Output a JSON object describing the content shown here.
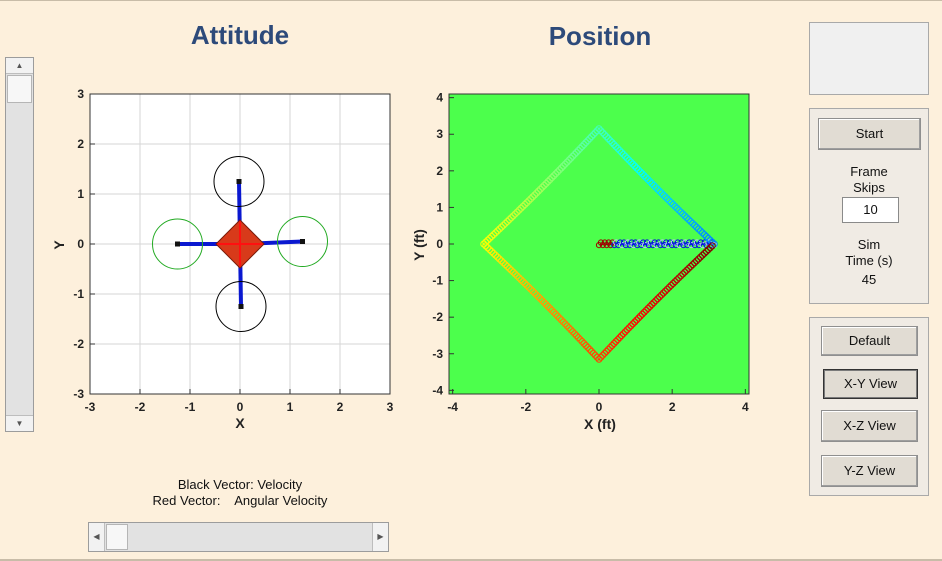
{
  "titles": {
    "attitude": "Attitude",
    "position": "Position"
  },
  "legend": {
    "line1": "Black Vector: Velocity",
    "line2": "Red Vector:    Angular Velocity"
  },
  "controls": {
    "start_label": "Start",
    "frame_skips_label_1": "Frame",
    "frame_skips_label_2": "Skips",
    "frame_skips_value": "10",
    "sim_time_label_1": "Sim",
    "sim_time_label_2": "Time (s)",
    "sim_time_value": "45"
  },
  "views": {
    "default_label": "Default",
    "xy_label": "X-Y View",
    "xz_label": "X-Z View",
    "yz_label": "Y-Z View",
    "active": "xy"
  },
  "colors": {
    "title": "#2d4a7a",
    "plot_bg_position": "#4cff4c",
    "rotor_front_back": "#000000",
    "rotor_sides": "#22aa22",
    "body": "#d83a1a",
    "arms": "#0a18d0"
  },
  "chart_data": [
    {
      "type": "scatter",
      "name": "attitude",
      "xlabel": "X",
      "ylabel": "Y",
      "xlim": [
        -3,
        3
      ],
      "ylim": [
        -3,
        3
      ],
      "xticks": [
        "-3",
        "-2",
        "-1",
        "0",
        "1",
        "2",
        "3"
      ],
      "yticks": [
        "-3",
        "-2",
        "-1",
        "0",
        "1",
        "2",
        "3"
      ],
      "grid": true,
      "rotors": [
        {
          "x": -0.02,
          "y": 1.25,
          "r": 0.5,
          "color": "black"
        },
        {
          "x": 0.02,
          "y": -1.25,
          "r": 0.5,
          "color": "black"
        },
        {
          "x": -1.25,
          "y": 0.0,
          "r": 0.5,
          "color": "green"
        },
        {
          "x": 1.25,
          "y": 0.05,
          "r": 0.5,
          "color": "green"
        }
      ],
      "body_half_width": 0.48
    },
    {
      "type": "scatter",
      "name": "position",
      "xlabel": "X (ft)",
      "ylabel": "Y (ft)",
      "xlim": [
        -4.1,
        4.1
      ],
      "ylim": [
        -4.1,
        4.1
      ],
      "xticks": [
        "-4",
        "-2",
        "0",
        "2",
        "4"
      ],
      "yticks": [
        "-4",
        "-3",
        "-2",
        "-1",
        "0",
        "1",
        "2",
        "3",
        "4"
      ],
      "grid": false,
      "trajectory": "diamond path through (3.15,0), (0,3.15), (-3.15,0), (0,-3.15), colored along time blue→cyan→yellow→red; initial segment from (0,0) to (3.15,0)",
      "vertices": [
        [
          3.15,
          0
        ],
        [
          0,
          3.15
        ],
        [
          -3.15,
          0
        ],
        [
          0,
          -3.15
        ]
      ],
      "start_segment": [
        [
          0,
          0
        ],
        [
          3.15,
          0
        ]
      ]
    }
  ]
}
